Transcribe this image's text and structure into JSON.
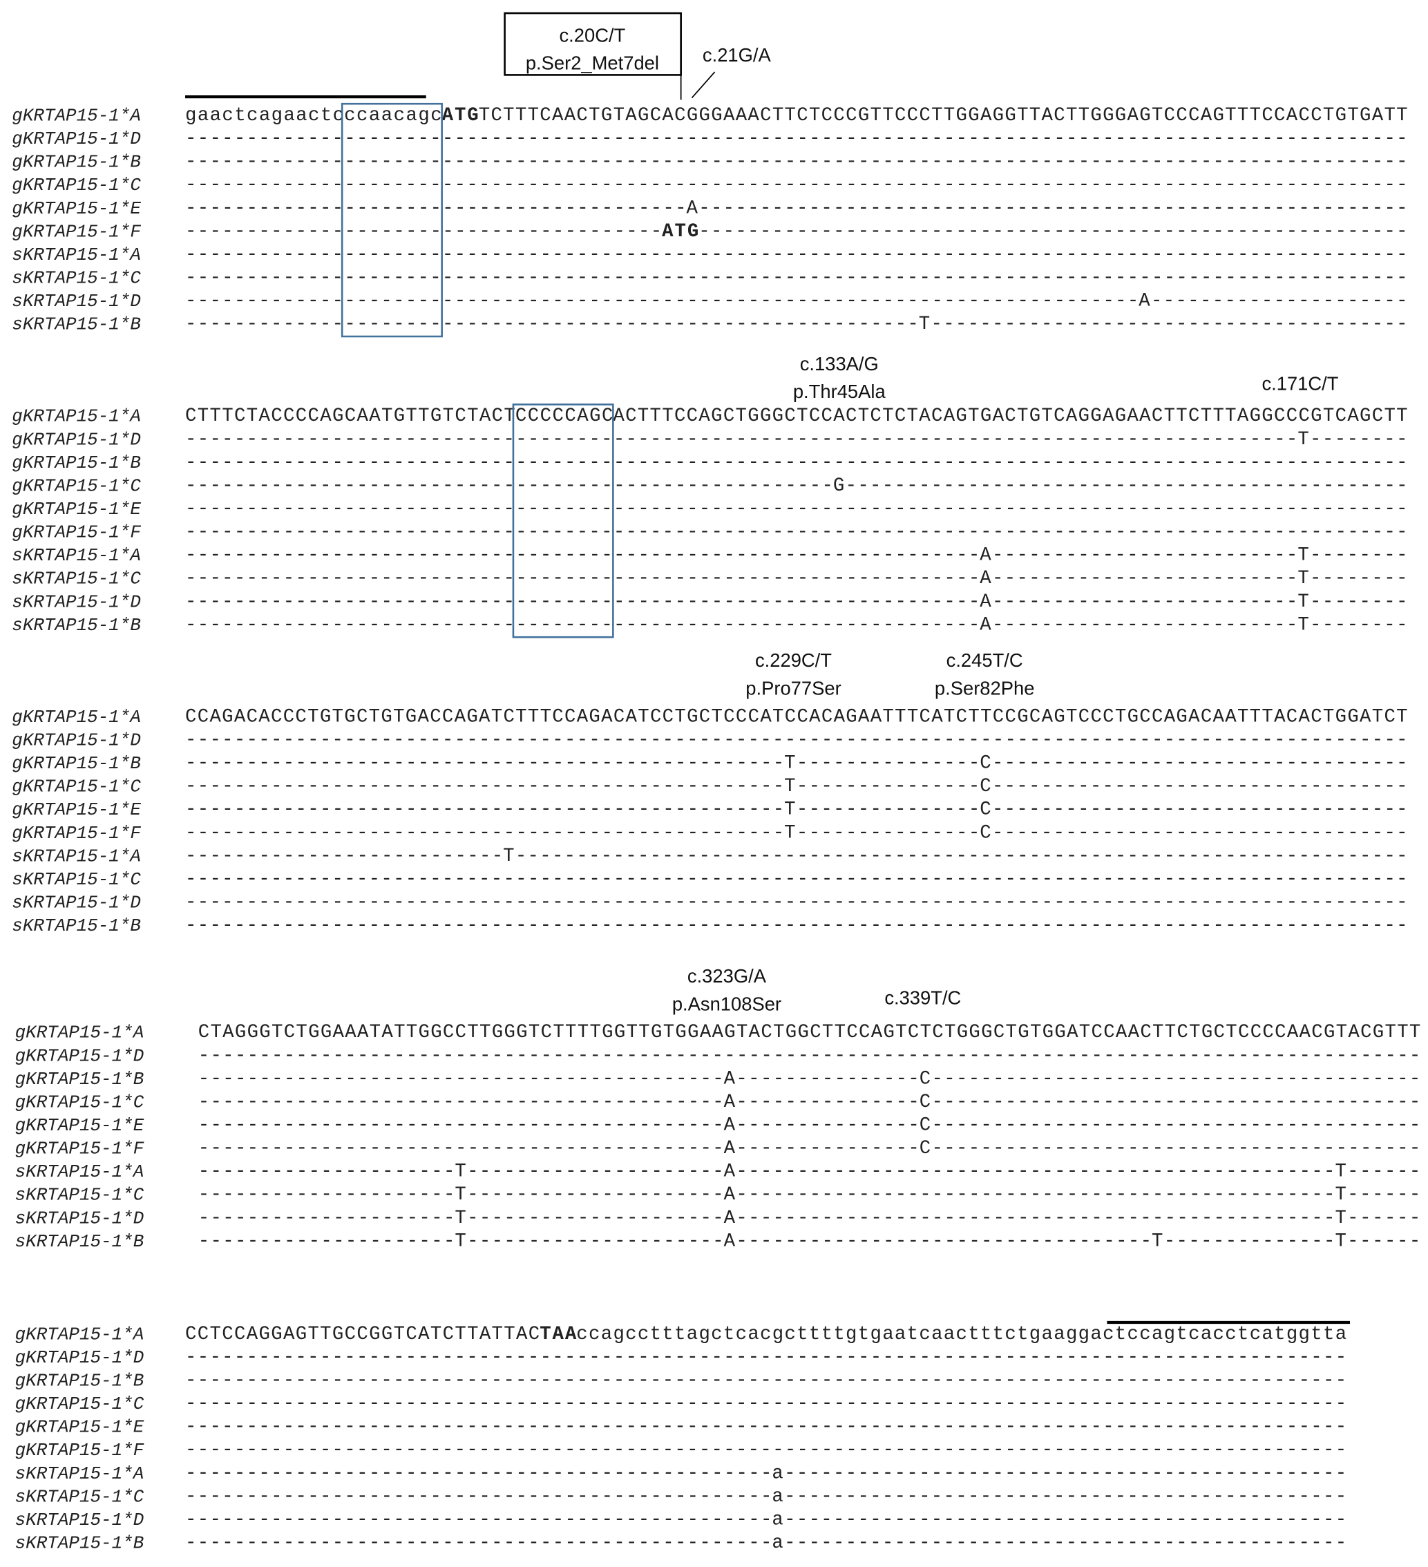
{
  "blocks": [
    {
      "rows": [
        {
          "label": "gKRTAP15-1*A",
          "segments": [
            {
              "text": "gaactcagaactc"
            },
            {
              "text": "ccaacagc",
              "color": "#e02020"
            },
            {
              "text": "ATG",
              "bold": true
            },
            {
              "text": "TCTTTCAACTGTAGCACGGGAAACTTCTCCCGTTCCCTTGGAGGTTACTTGGGAGTCCCAGTTTCCACCTGTGATT"
            }
          ]
        },
        {
          "label": "gKRTAP15-1*D",
          "segments": [
            {
              "text": "----------------------------------------------------------------------------------------------------"
            }
          ]
        },
        {
          "label": "gKRTAP15-1*B",
          "segments": [
            {
              "text": "----------------------------------------------------------------------------------------------------"
            }
          ]
        },
        {
          "label": "gKRTAP15-1*C",
          "segments": [
            {
              "text": "----------------------------------------------------------------------------------------------------"
            }
          ]
        },
        {
          "label": "gKRTAP15-1*E",
          "segments": [
            {
              "text": "-----------------------------------------"
            },
            {
              "text": "A"
            },
            {
              "text": "----------------------------------------------------------"
            }
          ]
        },
        {
          "label": "gKRTAP15-1*F",
          "segments": [
            {
              "text": "---------------------------------------"
            },
            {
              "text": "ATG",
              "bold": true
            },
            {
              "text": "----------------------------------------------------------"
            }
          ]
        },
        {
          "label": "sKRTAP15-1*A",
          "segments": [
            {
              "text": "----------------------------------------------------------------------------------------------------"
            }
          ]
        },
        {
          "label": "sKRTAP15-1*C",
          "segments": [
            {
              "text": "----------------------------------------------------------------------------------------------------"
            }
          ]
        },
        {
          "label": "sKRTAP15-1*D",
          "segments": [
            {
              "text": "------------------------------------------------------------------------------"
            },
            {
              "text": "A"
            },
            {
              "text": "---------------------"
            }
          ]
        },
        {
          "label": "sKRTAP15-1*B",
          "segments": [
            {
              "text": "------------------------------------------------------------"
            },
            {
              "text": "T"
            },
            {
              "text": "---------------------------------------"
            }
          ]
        }
      ],
      "annotations": [
        {
          "lines": [
            "c.20C/T",
            "p.Ser2_Met7del"
          ]
        },
        {
          "lines": [
            "c.21G/A"
          ]
        }
      ]
    },
    {
      "rows": [
        {
          "label": "gKRTAP15-1*A",
          "segments": [
            {
              "text": "CTTTCTACCCCAGCAATGTTGTCTACT"
            },
            {
              "text": "CCCCCAGC",
              "color": "#e02020"
            },
            {
              "text": "ACTTTCCAGCTGGGCTCCACTCTCTACAGTGACTGTCAGGAGAACTTCTTTAGGCCCGTCAGCTT"
            }
          ]
        },
        {
          "label": "gKRTAP15-1*D",
          "segments": [
            {
              "text": "-------------------------------------------------------------------------------------------"
            },
            {
              "text": "T"
            },
            {
              "text": "--------"
            }
          ]
        },
        {
          "label": "gKRTAP15-1*B",
          "segments": [
            {
              "text": "----------------------------------------------------------------------------------------------------"
            }
          ]
        },
        {
          "label": "gKRTAP15-1*C",
          "segments": [
            {
              "text": "-----------------------------------------------------"
            },
            {
              "text": "G"
            },
            {
              "text": "----------------------------------------------"
            }
          ]
        },
        {
          "label": "gKRTAP15-1*E",
          "segments": [
            {
              "text": "----------------------------------------------------------------------------------------------------"
            }
          ]
        },
        {
          "label": "gKRTAP15-1*F",
          "segments": [
            {
              "text": "----------------------------------------------------------------------------------------------------"
            }
          ]
        },
        {
          "label": "sKRTAP15-1*A",
          "segments": [
            {
              "text": "-----------------------------------------------------------------"
            },
            {
              "text": "A"
            },
            {
              "text": "-------------------------"
            },
            {
              "text": "T"
            },
            {
              "text": "--------"
            }
          ]
        },
        {
          "label": "sKRTAP15-1*C",
          "segments": [
            {
              "text": "-----------------------------------------------------------------"
            },
            {
              "text": "A"
            },
            {
              "text": "-------------------------"
            },
            {
              "text": "T"
            },
            {
              "text": "--------"
            }
          ]
        },
        {
          "label": "sKRTAP15-1*D",
          "segments": [
            {
              "text": "-----------------------------------------------------------------"
            },
            {
              "text": "A"
            },
            {
              "text": "-------------------------"
            },
            {
              "text": "T"
            },
            {
              "text": "--------"
            }
          ]
        },
        {
          "label": "sKRTAP15-1*B",
          "segments": [
            {
              "text": "-----------------------------------------------------------------"
            },
            {
              "text": "A"
            },
            {
              "text": "-------------------------"
            },
            {
              "text": "T"
            },
            {
              "text": "--------"
            }
          ]
        }
      ],
      "annotations": [
        {
          "lines": [
            "c.133A/G",
            "p.Thr45Ala"
          ]
        },
        {
          "lines": [
            "c.171C/T"
          ]
        }
      ]
    },
    {
      "rows": [
        {
          "label": "gKRTAP15-1*A",
          "segments": [
            {
              "text": "CCAGACACCCTGTGCTGTGACCAGATCTTTCCAGACATCCTGCTCCCATCCACAGAATTTCATCTTCCGCAGTCCCTGCCAGACAATTTACACTGGATCT"
            }
          ]
        },
        {
          "label": "gKRTAP15-1*D",
          "segments": [
            {
              "text": "----------------------------------------------------------------------------------------------------"
            }
          ]
        },
        {
          "label": "gKRTAP15-1*B",
          "segments": [
            {
              "text": "-------------------------------------------------"
            },
            {
              "text": "T"
            },
            {
              "text": "---------------"
            },
            {
              "text": "C"
            },
            {
              "text": "----------------------------------"
            }
          ]
        },
        {
          "label": "gKRTAP15-1*C",
          "segments": [
            {
              "text": "-------------------------------------------------"
            },
            {
              "text": "T"
            },
            {
              "text": "---------------"
            },
            {
              "text": "C"
            },
            {
              "text": "----------------------------------"
            }
          ]
        },
        {
          "label": "gKRTAP15-1*E",
          "segments": [
            {
              "text": "-------------------------------------------------"
            },
            {
              "text": "T"
            },
            {
              "text": "---------------"
            },
            {
              "text": "C"
            },
            {
              "text": "----------------------------------"
            }
          ]
        },
        {
          "label": "gKRTAP15-1*F",
          "segments": [
            {
              "text": "-------------------------------------------------"
            },
            {
              "text": "T"
            },
            {
              "text": "---------------"
            },
            {
              "text": "C"
            },
            {
              "text": "----------------------------------"
            }
          ]
        },
        {
          "label": "sKRTAP15-1*A",
          "segments": [
            {
              "text": "--------------------------"
            },
            {
              "text": "T"
            },
            {
              "text": "-------------------------------------------------------------------------"
            }
          ]
        },
        {
          "label": "sKRTAP15-1*C",
          "segments": [
            {
              "text": "----------------------------------------------------------------------------------------------------"
            }
          ]
        },
        {
          "label": "sKRTAP15-1*D",
          "segments": [
            {
              "text": "----------------------------------------------------------------------------------------------------"
            }
          ]
        },
        {
          "label": "sKRTAP15-1*B",
          "segments": [
            {
              "text": "----------------------------------------------------------------------------------------------------"
            }
          ]
        }
      ],
      "annotations": [
        {
          "lines": [
            "c.229C/T",
            "p.Pro77Ser"
          ]
        },
        {
          "lines": [
            "c.245T/C",
            "p.Ser82Phe"
          ]
        }
      ]
    },
    {
      "rows": [
        {
          "label": "gKRTAP15-1*A",
          "segments": [
            {
              "text": "CTAGGGTCTGGAAATATTGGCCTTGGGTCTTTTGGTTGTGGAAGTACTGGCTTCCAGTCTCTGGGCTGTGGATCCAACTTCTGCTCCCCAACGTACGTTT"
            }
          ]
        },
        {
          "label": "gKRTAP15-1*D",
          "segments": [
            {
              "text": "----------------------------------------------------------------------------------------------------"
            }
          ]
        },
        {
          "label": "gKRTAP15-1*B",
          "segments": [
            {
              "text": "-------------------------------------------"
            },
            {
              "text": "A"
            },
            {
              "text": "---------------"
            },
            {
              "text": "C"
            },
            {
              "text": "----------------------------------------"
            }
          ]
        },
        {
          "label": "gKRTAP15-1*C",
          "segments": [
            {
              "text": "-------------------------------------------"
            },
            {
              "text": "A"
            },
            {
              "text": "---------------"
            },
            {
              "text": "C"
            },
            {
              "text": "----------------------------------------"
            }
          ]
        },
        {
          "label": "gKRTAP15-1*E",
          "segments": [
            {
              "text": "-------------------------------------------"
            },
            {
              "text": "A"
            },
            {
              "text": "---------------"
            },
            {
              "text": "C"
            },
            {
              "text": "----------------------------------------"
            }
          ]
        },
        {
          "label": "gKRTAP15-1*F",
          "segments": [
            {
              "text": "-------------------------------------------"
            },
            {
              "text": "A"
            },
            {
              "text": "---------------"
            },
            {
              "text": "C"
            },
            {
              "text": "----------------------------------------"
            }
          ]
        },
        {
          "label": "sKRTAP15-1*A",
          "segments": [
            {
              "text": "---------------------"
            },
            {
              "text": "T"
            },
            {
              "text": "---------------------"
            },
            {
              "text": "A"
            },
            {
              "text": "-------------------------------------------------"
            },
            {
              "text": "T"
            },
            {
              "text": "------"
            }
          ]
        },
        {
          "label": "sKRTAP15-1*C",
          "segments": [
            {
              "text": "---------------------"
            },
            {
              "text": "T"
            },
            {
              "text": "---------------------"
            },
            {
              "text": "A"
            },
            {
              "text": "-------------------------------------------------"
            },
            {
              "text": "T"
            },
            {
              "text": "------"
            }
          ]
        },
        {
          "label": "sKRTAP15-1*D",
          "segments": [
            {
              "text": "---------------------"
            },
            {
              "text": "T"
            },
            {
              "text": "---------------------"
            },
            {
              "text": "A"
            },
            {
              "text": "-------------------------------------------------"
            },
            {
              "text": "T"
            },
            {
              "text": "------"
            }
          ]
        },
        {
          "label": "sKRTAP15-1*B",
          "segments": [
            {
              "text": "---------------------"
            },
            {
              "text": "T"
            },
            {
              "text": "---------------------"
            },
            {
              "text": "A"
            },
            {
              "text": "----------------------------------"
            },
            {
              "text": "T"
            },
            {
              "text": "--------------"
            },
            {
              "text": "T"
            },
            {
              "text": "------"
            }
          ]
        }
      ],
      "annotations": [
        {
          "lines": [
            "c.323G/A",
            "p.Asn108Ser"
          ]
        },
        {
          "lines": [
            "c.339T/C"
          ]
        }
      ]
    },
    {
      "rows": [
        {
          "label": "gKRTAP15-1*A",
          "segments": [
            {
              "text": "CCTCCAGGAGTTGCCGGTCATCTTATTAC"
            },
            {
              "text": "TAA",
              "bold": true
            },
            {
              "text": "ccagcctttagctcacgcttttgtgaatcaactttctgaaggactccagtcacctcatggtta"
            }
          ]
        },
        {
          "label": "gKRTAP15-1*D",
          "segments": [
            {
              "text": "-----------------------------------------------------------------------------------------------"
            }
          ]
        },
        {
          "label": "gKRTAP15-1*B",
          "segments": [
            {
              "text": "-----------------------------------------------------------------------------------------------"
            }
          ]
        },
        {
          "label": "gKRTAP15-1*C",
          "segments": [
            {
              "text": "-----------------------------------------------------------------------------------------------"
            }
          ]
        },
        {
          "label": "gKRTAP15-1*E",
          "segments": [
            {
              "text": "-----------------------------------------------------------------------------------------------"
            }
          ]
        },
        {
          "label": "gKRTAP15-1*F",
          "segments": [
            {
              "text": "-----------------------------------------------------------------------------------------------"
            }
          ]
        },
        {
          "label": "sKRTAP15-1*A",
          "segments": [
            {
              "text": "------------------------------------------------"
            },
            {
              "text": "a"
            },
            {
              "text": "----------------------------------------------"
            }
          ]
        },
        {
          "label": "sKRTAP15-1*C",
          "segments": [
            {
              "text": "------------------------------------------------"
            },
            {
              "text": "a"
            },
            {
              "text": "----------------------------------------------"
            }
          ]
        },
        {
          "label": "sKRTAP15-1*D",
          "segments": [
            {
              "text": "------------------------------------------------"
            },
            {
              "text": "a"
            },
            {
              "text": "----------------------------------------------"
            }
          ]
        },
        {
          "label": "sKRTAP15-1*B",
          "segments": [
            {
              "text": "------------------------------------------------"
            },
            {
              "text": "a"
            },
            {
              "text": "----------------------------------------------"
            }
          ]
        }
      ],
      "annotations": []
    }
  ]
}
